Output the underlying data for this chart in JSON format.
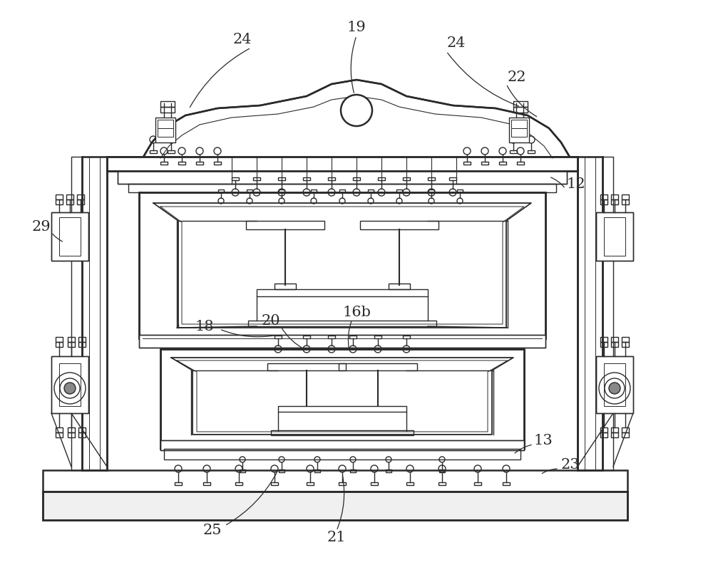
{
  "bg_color": "#ffffff",
  "line_color": "#2a2a2a",
  "lw": 1.0,
  "tlw": 1.8,
  "fs": 15
}
